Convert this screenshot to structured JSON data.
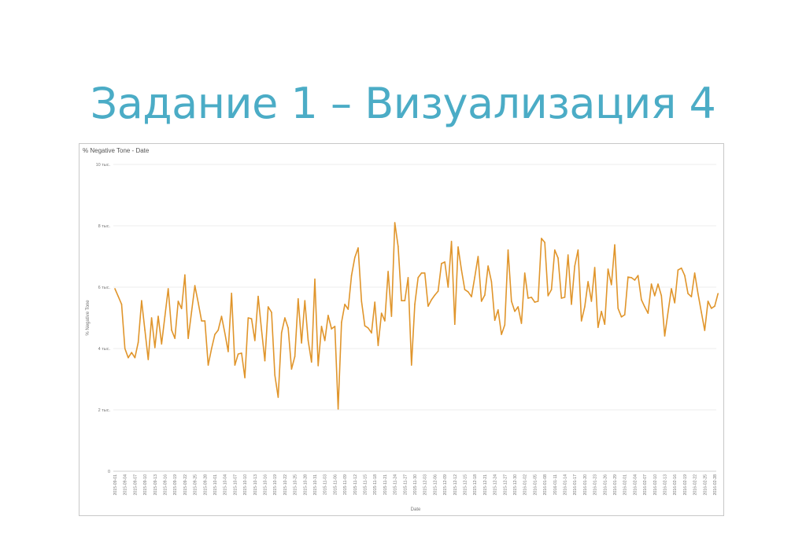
{
  "slide": {
    "title": "Задание 1 – Визуализация 4"
  },
  "chart_data": {
    "type": "line",
    "title": "% Negative Tone - Date",
    "xlabel": "Date",
    "ylabel": "% Negative Tone",
    "ylim": [
      0,
      10
    ],
    "y_unit": "тыс.",
    "y_ticks": [
      0,
      2,
      4,
      6,
      8,
      10
    ],
    "y_tick_labels": [
      "0",
      "2 тыс.",
      "4 тыс.",
      "6 тыс.",
      "8 тыс.",
      "10 тыс."
    ],
    "grid": "horizontal",
    "frequency": "daily",
    "x_tick_labels": [
      "2015-09-01",
      "2015-09-04",
      "2015-09-07",
      "2015-09-10",
      "2015-09-13",
      "2015-09-16",
      "2015-09-19",
      "2015-09-22",
      "2015-09-25",
      "2015-09-28",
      "2015-10-01",
      "2015-10-04",
      "2015-10-07",
      "2015-10-10",
      "2015-10-13",
      "2015-10-16",
      "2015-10-19",
      "2015-10-22",
      "2015-10-25",
      "2015-10-28",
      "2015-10-31",
      "2015-11-03",
      "2015-11-06",
      "2015-11-09",
      "2015-11-12",
      "2015-11-15",
      "2015-11-18",
      "2015-11-21",
      "2015-11-24",
      "2015-11-27",
      "2015-11-30",
      "2015-12-03",
      "2015-12-06",
      "2015-12-09",
      "2015-12-12",
      "2015-12-15",
      "2015-12-18",
      "2015-12-21",
      "2015-12-24",
      "2015-12-27",
      "2015-12-30",
      "2016-01-02",
      "2016-01-05",
      "2016-01-08",
      "2016-01-11",
      "2016-01-14",
      "2016-01-17",
      "2016-01-20",
      "2016-01-23",
      "2016-01-26",
      "2016-01-29",
      "2016-02-01",
      "2016-02-04",
      "2016-02-07",
      "2016-02-10",
      "2016-02-13",
      "2016-02-16",
      "2016-02-19",
      "2016-02-22",
      "2016-02-25",
      "2016-02-28"
    ],
    "series": [
      {
        "color": "#e0952b",
        "values": [
          5.95,
          5.7,
          5.44,
          4.0,
          3.7,
          3.87,
          3.7,
          4.2,
          5.56,
          4.6,
          3.64,
          5.0,
          4.03,
          5.05,
          4.15,
          5.05,
          5.95,
          4.6,
          4.33,
          5.54,
          5.3,
          6.4,
          4.33,
          5.2,
          6.05,
          5.5,
          4.9,
          4.9,
          3.46,
          4.0,
          4.46,
          4.6,
          5.05,
          4.5,
          3.9,
          5.8,
          3.46,
          3.82,
          3.85,
          3.05,
          5.0,
          4.97,
          4.26,
          5.7,
          4.6,
          3.6,
          5.36,
          5.18,
          3.13,
          2.41,
          4.51,
          5.0,
          4.67,
          3.33,
          3.74,
          5.62,
          4.18,
          5.56,
          4.26,
          3.56,
          6.26,
          3.44,
          4.72,
          4.26,
          5.08,
          4.64,
          4.72,
          2.03,
          4.85,
          5.44,
          5.28,
          6.38,
          6.97,
          7.28,
          5.54,
          4.74,
          4.67,
          4.51,
          5.51,
          4.1,
          5.15,
          4.9,
          6.51,
          5.05,
          8.1,
          7.33,
          5.56,
          5.56,
          6.31,
          3.46,
          5.44,
          6.31,
          6.46,
          6.46,
          5.38,
          5.59,
          5.74,
          5.87,
          6.77,
          6.82,
          6.0,
          7.49,
          4.79,
          7.31,
          6.56,
          5.92,
          5.85,
          5.69,
          6.33,
          7.0,
          5.54,
          5.74,
          6.69,
          6.18,
          4.92,
          5.26,
          4.46,
          4.77,
          7.21,
          5.54,
          5.21,
          5.36,
          4.82,
          6.46,
          5.64,
          5.67,
          5.51,
          5.54,
          7.59,
          7.46,
          5.72,
          5.92,
          7.21,
          6.95,
          5.64,
          5.67,
          7.05,
          5.44,
          6.69,
          7.21,
          4.9,
          5.36,
          6.18,
          5.54,
          6.64,
          4.69,
          5.21,
          4.79,
          6.59,
          6.08,
          7.38,
          5.31,
          5.03,
          5.1,
          6.33,
          6.31,
          6.23,
          6.38,
          5.59,
          5.36,
          5.15,
          6.1,
          5.72,
          6.1,
          5.72,
          4.41,
          5.18,
          5.95,
          5.49,
          6.56,
          6.62,
          6.38,
          5.79,
          5.69,
          6.46,
          5.79,
          5.18,
          4.59,
          5.54,
          5.31,
          5.38,
          5.79
        ]
      }
    ]
  }
}
